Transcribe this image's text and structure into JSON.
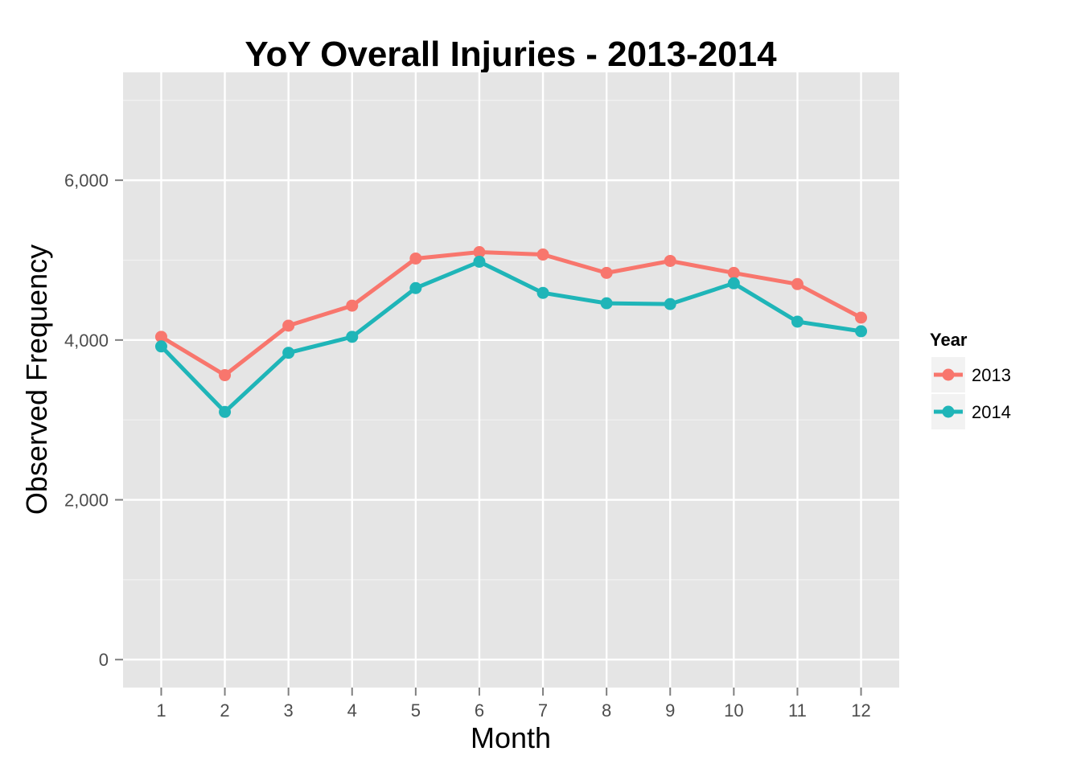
{
  "chart_data": {
    "type": "line",
    "title": "YoY Overall Injuries - 2013-2014",
    "xlabel": "Month",
    "ylabel": "Observed Frequency",
    "x": [
      1,
      2,
      3,
      4,
      5,
      6,
      7,
      8,
      9,
      10,
      11,
      12
    ],
    "x_tick_labels": [
      "1",
      "2",
      "3",
      "4",
      "5",
      "6",
      "7",
      "8",
      "9",
      "10",
      "11",
      "12"
    ],
    "y_ticks": [
      0,
      2000,
      4000,
      6000
    ],
    "y_tick_labels": [
      "0",
      "2,000",
      "4,000",
      "6,000"
    ],
    "xlim": [
      0.4,
      12.6
    ],
    "ylim": [
      -350,
      7350
    ],
    "grid": true,
    "legend": {
      "title": "Year",
      "position": "right"
    },
    "series": [
      {
        "name": "2013",
        "color": "#f8766d",
        "values": [
          4040,
          3560,
          4180,
          4430,
          5020,
          5100,
          5070,
          4840,
          4990,
          4840,
          4700,
          4280
        ]
      },
      {
        "name": "2014",
        "color": "#1fb5b8",
        "values": [
          3920,
          3100,
          3840,
          4040,
          4650,
          4980,
          4590,
          4460,
          4450,
          4710,
          4230,
          4110
        ]
      }
    ]
  }
}
